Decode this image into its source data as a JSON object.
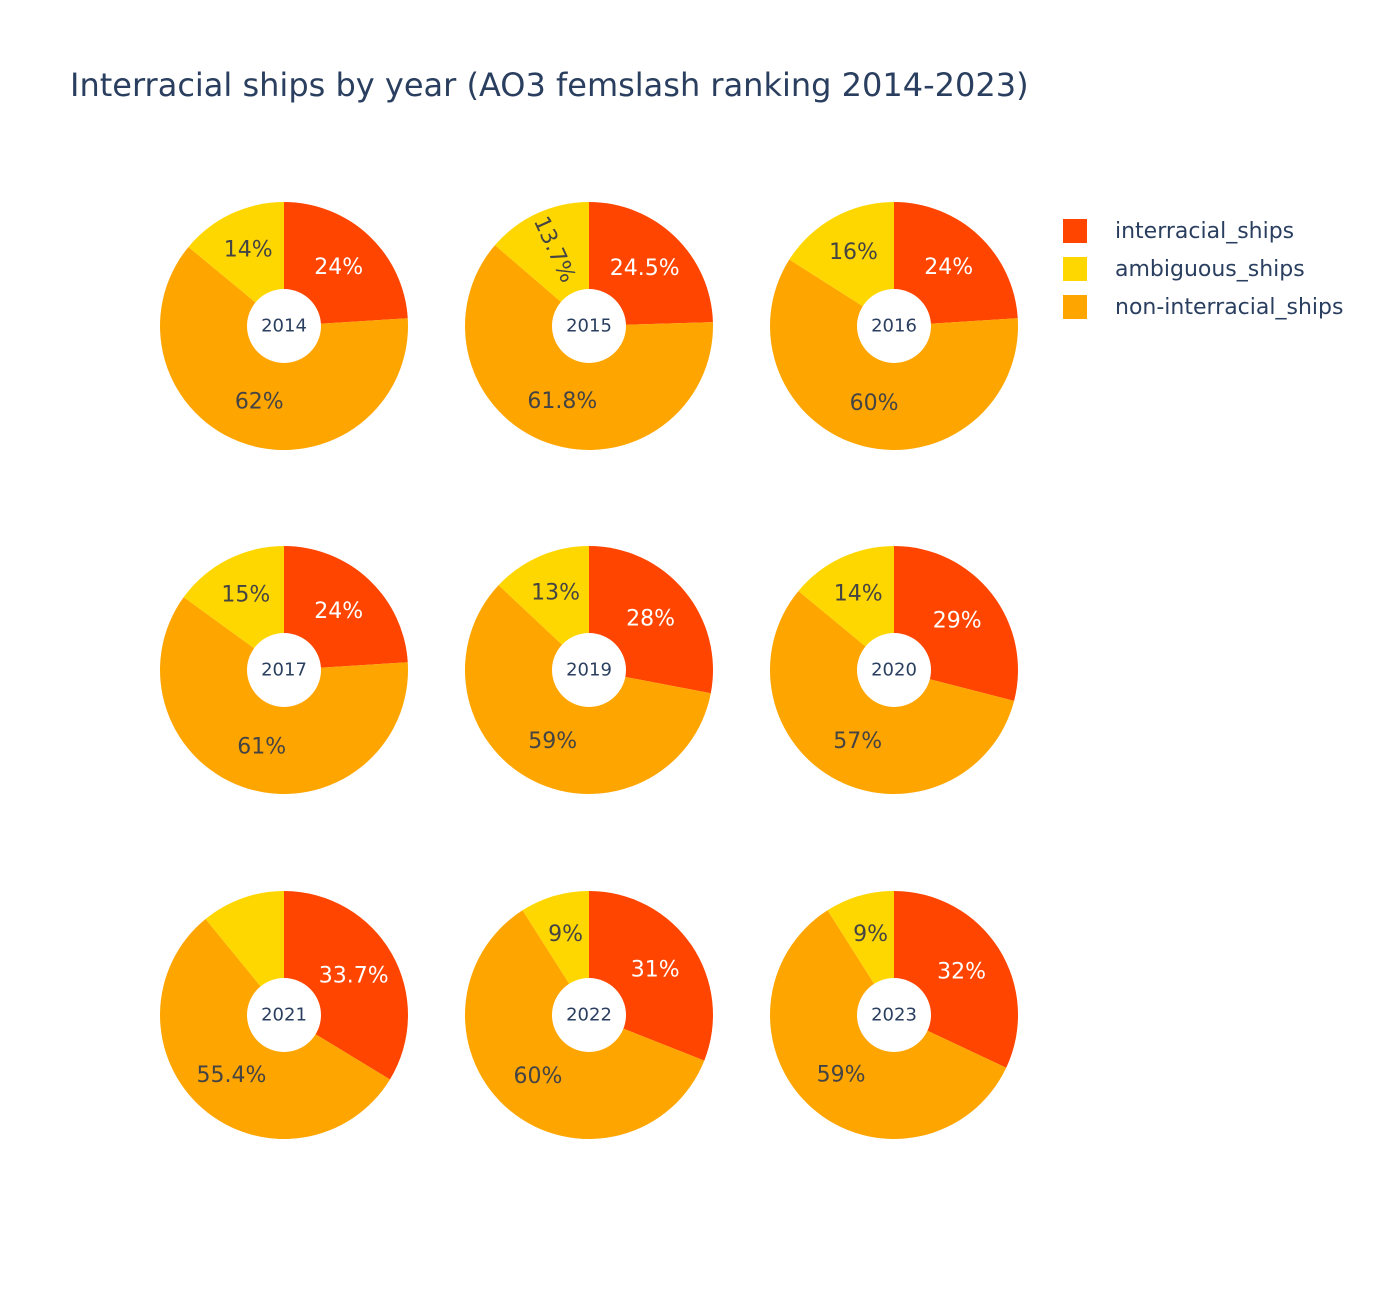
{
  "chart_data": {
    "type": "pie",
    "title": "Interracial ships by year (AO3 femslash ranking 2014-2023)",
    "legend": {
      "placement": "top-right",
      "entries": [
        {
          "key": "interracial",
          "label": "interracial_ships",
          "color": "#ff4500"
        },
        {
          "key": "ambiguous",
          "label": "ambiguous_ships",
          "color": "#ffd700"
        },
        {
          "key": "noninterracial",
          "label": "non-interracial_ships",
          "color": "#ffa500"
        }
      ]
    },
    "pies": [
      {
        "year": "2014",
        "values": [
          24,
          14,
          62
        ],
        "labels": [
          "24%",
          "14%",
          "62%"
        ]
      },
      {
        "year": "2015",
        "values": [
          24.5,
          13.7,
          61.8
        ],
        "labels": [
          "24.5%",
          "13.7%",
          "61.8%"
        ]
      },
      {
        "year": "2016",
        "values": [
          24,
          16,
          60
        ],
        "labels": [
          "24%",
          "16%",
          "60%"
        ]
      },
      {
        "year": "2017",
        "values": [
          24,
          15,
          61
        ],
        "labels": [
          "24%",
          "15%",
          "61%"
        ]
      },
      {
        "year": "2019",
        "values": [
          28,
          13,
          59
        ],
        "labels": [
          "28%",
          "13%",
          "59%"
        ]
      },
      {
        "year": "2020",
        "values": [
          29,
          14,
          57
        ],
        "labels": [
          "29%",
          "14%",
          "57%"
        ]
      },
      {
        "year": "2021",
        "values": [
          33.7,
          10.9,
          55.4
        ],
        "labels": [
          "33.7%",
          "",
          "55.4%"
        ]
      },
      {
        "year": "2022",
        "values": [
          31,
          9,
          60
        ],
        "labels": [
          "31%",
          "9%",
          "60%"
        ]
      },
      {
        "year": "2023",
        "values": [
          32,
          9,
          59
        ],
        "labels": [
          "32%",
          "9%",
          "59%"
        ]
      }
    ]
  }
}
